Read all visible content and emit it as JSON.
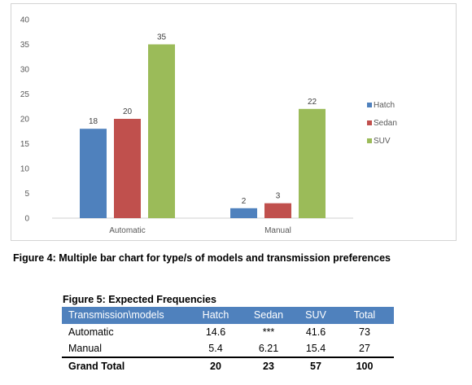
{
  "chart_data": {
    "type": "bar",
    "categories": [
      "Automatic",
      "Manual"
    ],
    "series": [
      {
        "name": "Hatch",
        "values": [
          18,
          2
        ],
        "color": "#4f81bd"
      },
      {
        "name": "Sedan",
        "values": [
          20,
          3
        ],
        "color": "#c0504d"
      },
      {
        "name": "SUV",
        "values": [
          35,
          22
        ],
        "color": "#9bbb59"
      }
    ],
    "ylim": [
      0,
      40
    ],
    "yticks": [
      0,
      5,
      10,
      15,
      20,
      25,
      30,
      35,
      40
    ],
    "legend_position": "right",
    "grid": false
  },
  "figure4_caption": "Figure 4: Multiple bar chart for type/s of models and transmission preferences",
  "figure5": {
    "title": "Figure 5: Expected Frequencies",
    "headers": [
      "Transmission\\models",
      "Hatch",
      "Sedan",
      "SUV",
      "Total"
    ],
    "rows": [
      [
        "Automatic",
        "14.6",
        "***",
        "41.6",
        "73"
      ],
      [
        "Manual",
        "5.4",
        "6.21",
        "15.4",
        "27"
      ]
    ],
    "total_row": [
      "Grand Total",
      "20",
      "23",
      "57",
      "100"
    ],
    "header_color": "#4f81bd"
  }
}
